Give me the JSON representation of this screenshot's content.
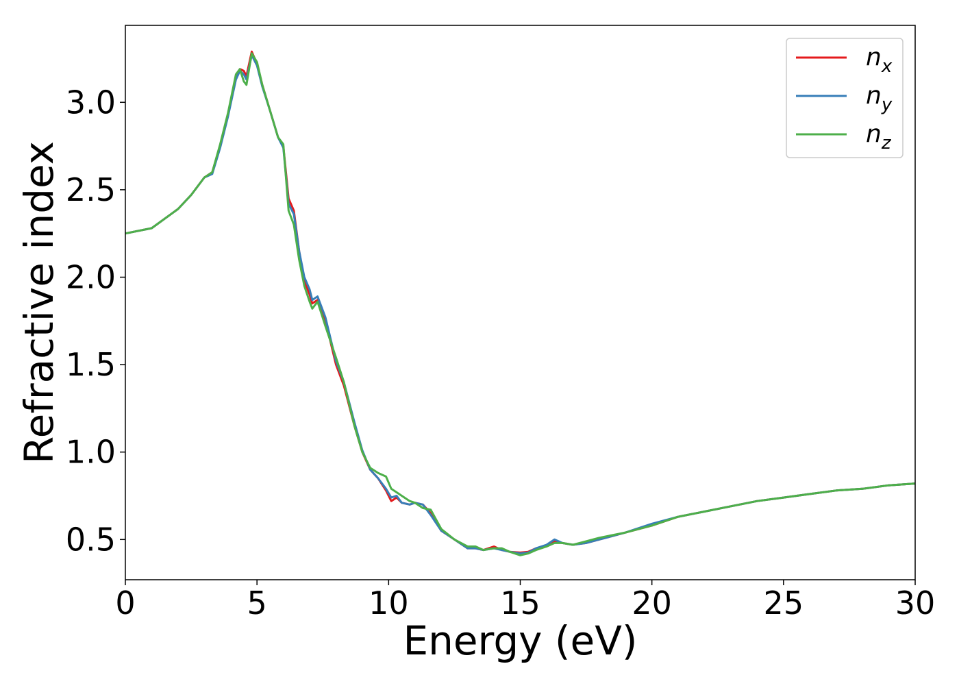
{
  "chart_data": {
    "type": "line",
    "xlabel": "Energy (eV)",
    "ylabel": "Refractive index",
    "xlim": [
      0,
      30
    ],
    "ylim": [
      0.27,
      3.44
    ],
    "x_ticks": [
      0,
      5,
      10,
      15,
      20,
      25,
      30
    ],
    "y_ticks": [
      0.5,
      1.0,
      1.5,
      2.0,
      2.5,
      3.0
    ],
    "x_tick_labels": [
      "0",
      "5",
      "10",
      "15",
      "20",
      "25",
      "30"
    ],
    "y_tick_labels": [
      "0.5",
      "1.0",
      "1.5",
      "2.0",
      "2.5",
      "3.0"
    ],
    "grid": false,
    "legend_position": "top-right",
    "series": [
      {
        "name": "n_x",
        "label_base": "n",
        "label_sub": "x",
        "color": "#e41a1c",
        "x": [
          0,
          1,
          2,
          2.5,
          3,
          3.3,
          3.6,
          3.9,
          4.2,
          4.35,
          4.5,
          4.6,
          4.8,
          5,
          5.2,
          5.5,
          5.8,
          6,
          6.2,
          6.4,
          6.6,
          6.8,
          7,
          7.1,
          7.3,
          7.6,
          8,
          8.3,
          8.7,
          9,
          9.3,
          9.6,
          9.9,
          10.1,
          10.3,
          10.5,
          10.8,
          11,
          11.3,
          11.6,
          12,
          12.5,
          13,
          13.3,
          13.6,
          14,
          14.3,
          14.6,
          15,
          15.3,
          15.6,
          16,
          16.3,
          16.6,
          17,
          17.5,
          18,
          19,
          20,
          21,
          22,
          23,
          24,
          25,
          26,
          27,
          28,
          29,
          30
        ],
        "values": [
          2.25,
          2.28,
          2.39,
          2.47,
          2.57,
          2.6,
          2.75,
          2.93,
          3.14,
          3.19,
          3.18,
          3.15,
          3.29,
          3.22,
          3.1,
          2.95,
          2.8,
          2.75,
          2.45,
          2.38,
          2.15,
          1.98,
          1.9,
          1.85,
          1.87,
          1.75,
          1.5,
          1.38,
          1.15,
          1.0,
          0.9,
          0.85,
          0.78,
          0.72,
          0.74,
          0.71,
          0.7,
          0.71,
          0.7,
          0.65,
          0.55,
          0.5,
          0.45,
          0.45,
          0.44,
          0.46,
          0.44,
          0.43,
          0.425,
          0.43,
          0.45,
          0.46,
          0.49,
          0.48,
          0.47,
          0.48,
          0.5,
          0.54,
          0.58,
          0.63,
          0.66,
          0.69,
          0.72,
          0.74,
          0.76,
          0.78,
          0.79,
          0.81,
          0.82
        ]
      },
      {
        "name": "n_y",
        "label_base": "n",
        "label_sub": "y",
        "color": "#377eb8",
        "x": [
          0,
          1,
          2,
          2.5,
          3,
          3.3,
          3.6,
          3.9,
          4.2,
          4.35,
          4.5,
          4.6,
          4.8,
          5,
          5.2,
          5.5,
          5.8,
          6,
          6.2,
          6.4,
          6.6,
          6.8,
          7,
          7.1,
          7.3,
          7.6,
          8,
          8.3,
          8.7,
          9,
          9.3,
          9.6,
          9.9,
          10.1,
          10.3,
          10.5,
          10.8,
          11,
          11.3,
          11.6,
          12,
          12.5,
          13,
          13.3,
          13.6,
          14,
          14.3,
          14.6,
          15,
          15.3,
          15.6,
          16,
          16.3,
          16.6,
          17,
          17.5,
          18,
          19,
          20,
          21,
          22,
          23,
          24,
          25,
          26,
          27,
          28,
          29,
          30
        ],
        "values": [
          2.25,
          2.28,
          2.39,
          2.47,
          2.57,
          2.59,
          2.74,
          2.92,
          3.13,
          3.18,
          3.16,
          3.13,
          3.27,
          3.21,
          3.09,
          2.95,
          2.8,
          2.74,
          2.42,
          2.36,
          2.15,
          2.0,
          1.93,
          1.87,
          1.89,
          1.77,
          1.52,
          1.4,
          1.17,
          1.01,
          0.9,
          0.85,
          0.79,
          0.74,
          0.75,
          0.71,
          0.7,
          0.71,
          0.7,
          0.64,
          0.55,
          0.5,
          0.45,
          0.45,
          0.44,
          0.45,
          0.44,
          0.43,
          0.42,
          0.425,
          0.45,
          0.47,
          0.5,
          0.48,
          0.47,
          0.48,
          0.5,
          0.54,
          0.59,
          0.63,
          0.66,
          0.69,
          0.72,
          0.74,
          0.76,
          0.78,
          0.79,
          0.81,
          0.82
        ]
      },
      {
        "name": "n_z",
        "label_base": "n",
        "label_sub": "z",
        "color": "#4daf4a",
        "x": [
          0,
          1,
          2,
          2.5,
          3,
          3.3,
          3.6,
          3.9,
          4.2,
          4.35,
          4.5,
          4.6,
          4.8,
          5,
          5.2,
          5.5,
          5.8,
          6,
          6.2,
          6.4,
          6.6,
          6.8,
          7,
          7.1,
          7.3,
          7.6,
          8,
          8.3,
          8.7,
          9,
          9.3,
          9.6,
          9.9,
          10.1,
          10.3,
          10.5,
          10.8,
          11,
          11.3,
          11.6,
          12,
          12.5,
          13,
          13.3,
          13.6,
          14,
          14.3,
          14.6,
          15,
          15.3,
          15.6,
          16,
          16.3,
          16.6,
          17,
          17.5,
          18,
          19,
          20,
          21,
          22,
          23,
          24,
          25,
          26,
          27,
          28,
          29,
          30
        ],
        "values": [
          2.25,
          2.28,
          2.39,
          2.47,
          2.57,
          2.6,
          2.76,
          2.94,
          3.16,
          3.19,
          3.12,
          3.1,
          3.28,
          3.23,
          3.1,
          2.95,
          2.8,
          2.76,
          2.38,
          2.3,
          2.1,
          1.95,
          1.86,
          1.82,
          1.86,
          1.72,
          1.54,
          1.4,
          1.15,
          1.0,
          0.91,
          0.88,
          0.86,
          0.79,
          0.77,
          0.75,
          0.72,
          0.71,
          0.68,
          0.67,
          0.56,
          0.5,
          0.46,
          0.46,
          0.44,
          0.45,
          0.45,
          0.43,
          0.41,
          0.42,
          0.44,
          0.46,
          0.48,
          0.48,
          0.47,
          0.49,
          0.51,
          0.54,
          0.58,
          0.63,
          0.66,
          0.69,
          0.72,
          0.74,
          0.76,
          0.78,
          0.79,
          0.81,
          0.82
        ]
      }
    ]
  }
}
